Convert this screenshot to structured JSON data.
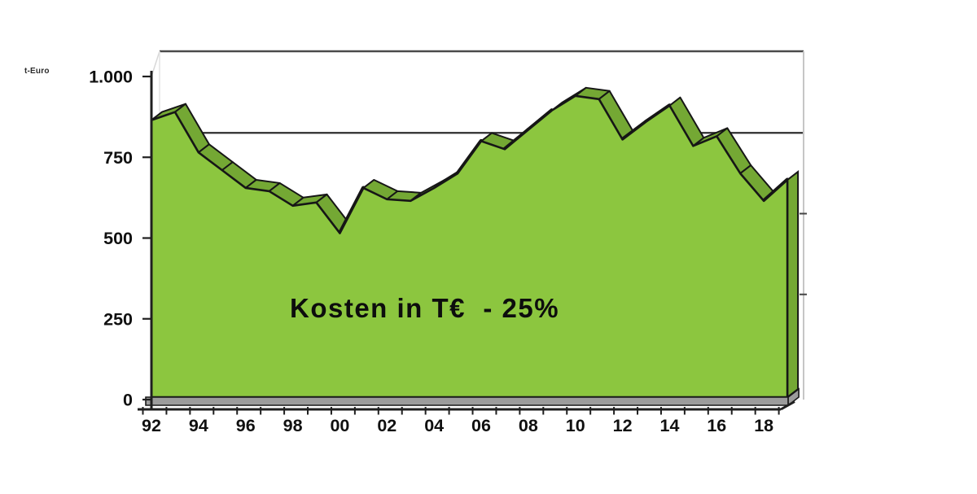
{
  "chart_data": {
    "type": "area",
    "style": "3d-area",
    "title_overlay": "Kosten in T€  - 25%",
    "unit_label": "t-Euro",
    "categories": [
      "92",
      "93",
      "94",
      "95",
      "96",
      "97",
      "98",
      "99",
      "00",
      "01",
      "02",
      "03",
      "04",
      "05",
      "06",
      "07",
      "08",
      "09",
      "10",
      "11",
      "12",
      "13",
      "14",
      "15",
      "16",
      "17",
      "18",
      "19"
    ],
    "values": [
      865,
      890,
      765,
      710,
      655,
      645,
      600,
      610,
      515,
      655,
      620,
      615,
      655,
      700,
      800,
      775,
      835,
      895,
      940,
      930,
      805,
      860,
      910,
      785,
      815,
      700,
      615,
      680
    ],
    "ylim": [
      0,
      1000
    ],
    "y_axis": {
      "tick_labels": [
        "1.000",
        "750",
        "500",
        "250",
        "0"
      ],
      "tick_values": [
        1000,
        750,
        500,
        250,
        0
      ]
    },
    "x_axis": {
      "label_every": 2,
      "shown_labels": [
        "92",
        "94",
        "96",
        "98",
        "00",
        "02",
        "04",
        "06",
        "08",
        "10",
        "12",
        "14",
        "16",
        "18"
      ]
    },
    "visible_gridlines": [
      750
    ],
    "legend": "none",
    "colors": {
      "area_fill": "#8cc63f",
      "ribbon_top_face": "#74a834",
      "outline": "#161616",
      "axis": "#1f1f1f",
      "floor": "#9c9c9c",
      "back_wall_edge": "#c6c6c6"
    }
  }
}
